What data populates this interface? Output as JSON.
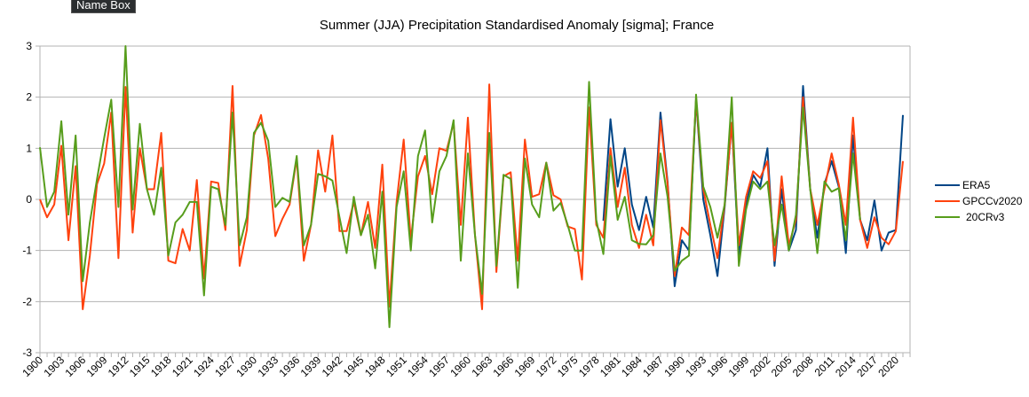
{
  "tooltip": "Name Box",
  "chart_data": {
    "type": "line",
    "title": "Summer (JJA) Precipitation Standardised Anomaly [sigma]; France",
    "xlabel": "",
    "ylabel": "",
    "ylim": [
      -3,
      3
    ],
    "yticks": [
      3,
      2,
      1,
      0,
      -1,
      -2,
      -3
    ],
    "x_start": 1900,
    "x_end": 2021,
    "x_label_every": 3,
    "grid": "horizontal",
    "legend_position": "right",
    "series": [
      {
        "name": "ERA5",
        "color": "#004586",
        "start_year": 1979,
        "values": [
          -0.42,
          1.57,
          0.25,
          1.0,
          -0.1,
          -0.6,
          0.05,
          -0.55,
          1.7,
          0.35,
          -1.7,
          -0.8,
          -1.0,
          1.95,
          0.0,
          -0.7,
          -1.5,
          -0.15,
          1.5,
          -1.1,
          -0.1,
          0.48,
          0.25,
          1.0,
          -1.3,
          0.2,
          -1.0,
          -0.6,
          2.22,
          0.2,
          -0.75,
          0.3,
          0.75,
          0.25,
          -1.05,
          1.25,
          -0.4,
          -0.8,
          -0.02,
          -1.0,
          -0.65,
          -0.6,
          1.65
        ]
      },
      {
        "name": "GPCCv2020",
        "color": "#ff420e",
        "start_year": 1900,
        "values": [
          0.0,
          -0.35,
          -0.1,
          1.05,
          -0.8,
          0.65,
          -2.15,
          -1.1,
          0.3,
          0.7,
          1.7,
          -1.15,
          2.2,
          -0.65,
          1.0,
          0.2,
          0.2,
          1.3,
          -1.2,
          -1.25,
          -0.58,
          -1.0,
          0.38,
          -1.55,
          0.35,
          0.32,
          -0.6,
          2.22,
          -1.3,
          -0.6,
          1.25,
          1.65,
          0.8,
          -0.72,
          -0.38,
          -0.1,
          0.8,
          -1.2,
          -0.5,
          0.96,
          0.15,
          1.25,
          -0.62,
          -0.62,
          -0.05,
          -0.7,
          -0.05,
          -0.95,
          0.68,
          -2.1,
          -0.05,
          1.17,
          -0.8,
          0.45,
          0.85,
          0.1,
          1.0,
          0.95,
          1.5,
          -0.5,
          1.6,
          -0.7,
          -2.15,
          2.25,
          -1.42,
          0.45,
          0.53,
          -1.2,
          1.17,
          0.05,
          0.1,
          0.72,
          0.08,
          0.0,
          -0.53,
          -0.58,
          -1.57,
          1.8,
          -0.5,
          -0.75,
          1.0,
          -0.15,
          0.62,
          -0.5,
          -0.95,
          -0.3,
          -0.9,
          1.55,
          0.3,
          -1.5,
          -0.55,
          -0.7,
          1.95,
          0.2,
          -0.5,
          -1.15,
          -0.1,
          1.5,
          -0.9,
          0.05,
          0.55,
          0.42,
          0.75,
          -1.2,
          0.45,
          -0.9,
          -0.4,
          2.0,
          0.2,
          -0.5,
          0.2,
          0.9,
          0.3,
          -0.5,
          1.6,
          -0.4,
          -0.95,
          -0.35,
          -0.75,
          -0.88,
          -0.62,
          0.75
        ]
      },
      {
        "name": "20CRv3",
        "color": "#579d1c",
        "start_year": 1900,
        "values": [
          1.02,
          -0.15,
          0.15,
          1.53,
          -0.3,
          1.25,
          -1.6,
          -0.45,
          0.4,
          1.2,
          1.95,
          -0.15,
          3.0,
          -0.2,
          1.48,
          0.2,
          -0.3,
          0.62,
          -1.1,
          -0.45,
          -0.3,
          -0.05,
          -0.05,
          -1.88,
          0.25,
          0.2,
          -0.5,
          1.7,
          -0.9,
          -0.35,
          1.3,
          1.5,
          1.15,
          -0.15,
          0.03,
          -0.05,
          0.85,
          -0.9,
          -0.5,
          0.5,
          0.45,
          0.37,
          -0.35,
          -1.05,
          0.05,
          -0.7,
          -0.3,
          -1.35,
          0.15,
          -2.5,
          -0.15,
          0.55,
          -1.0,
          0.85,
          1.35,
          -0.45,
          0.55,
          0.85,
          1.55,
          -1.2,
          0.9,
          -0.7,
          -1.85,
          1.3,
          -1.3,
          0.48,
          0.4,
          -1.73,
          0.8,
          -0.1,
          -0.35,
          0.72,
          -0.22,
          -0.07,
          -0.5,
          -1.0,
          -1.0,
          2.3,
          -0.4,
          -1.07,
          0.85,
          -0.4,
          0.05,
          -0.8,
          -0.87,
          -0.88,
          -0.7,
          0.9,
          0.05,
          -1.4,
          -1.2,
          -1.1,
          2.05,
          0.25,
          -0.15,
          -0.75,
          -0.1,
          2.0,
          -1.3,
          -0.2,
          0.35,
          0.2,
          0.35,
          -0.9,
          -0.1,
          -1.0,
          -0.3,
          1.8,
          0.2,
          -1.05,
          0.35,
          0.15,
          0.22,
          -0.8,
          0.9,
          -0.4
        ]
      }
    ]
  }
}
